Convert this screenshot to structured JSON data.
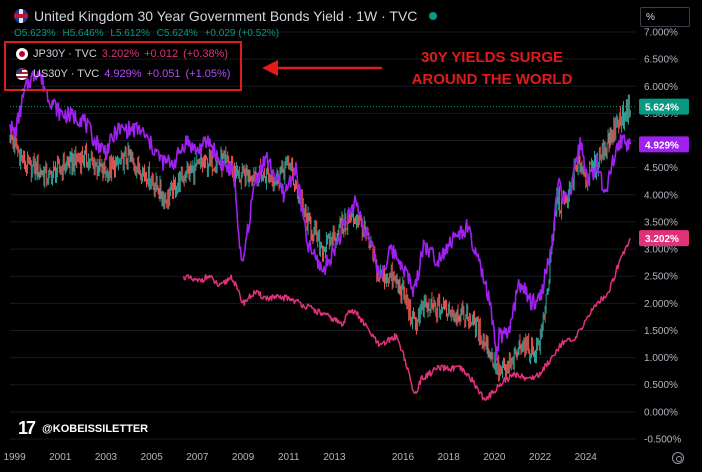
{
  "header": {
    "title": "United Kingdom 30 Year Government Bonds Yield · 1W · TVC",
    "ohlc": {
      "open": "O5.623%",
      "high": "H5.646%",
      "low": "L5.612%",
      "close": "C5.624%",
      "change": "+0.029 (+0.52%)"
    }
  },
  "unit_label": "%",
  "legend": [
    {
      "symbol": "JP30Y · TVC",
      "value": "3.202%",
      "change": "+0.012",
      "pct": "(+0.38%)",
      "color": "#e0317a"
    },
    {
      "symbol": "US30Y · TVC",
      "value": "4.929%",
      "change": "+0.051",
      "pct": "(+1.05%)",
      "color": "#a020f0"
    }
  ],
  "annotation": {
    "line1": "30Y YIELDS SURGE",
    "line2": "AROUND THE WORLD"
  },
  "watermark": "@KOBEISSILETTER",
  "colors": {
    "uk_up": "#26a69a",
    "uk_down": "#ef5350",
    "us": "#a020f0",
    "jp": "#e0317a",
    "highlight": "#e01b1b",
    "background": "#000000"
  },
  "icons": [
    "uk-flag-icon",
    "jp-flag-icon",
    "us-flag-icon",
    "tradingview-logo-icon",
    "settings-gear-icon",
    "collapse-arrow-icon"
  ],
  "chart_data": {
    "type": "line",
    "x_unit": "year",
    "y_unit": "%",
    "xlim": [
      1998.8,
      2026.2
    ],
    "ylim": [
      -0.5,
      7.0
    ],
    "x_ticks": [
      "1999",
      "2001",
      "2003",
      "2005",
      "2007",
      "2009",
      "2011",
      "2013",
      "2016",
      "2018",
      "2020",
      "2022",
      "2024"
    ],
    "y_ticks": [
      "-0.500%",
      "0.000%",
      "0.500%",
      "1.000%",
      "1.500%",
      "2.000%",
      "2.500%",
      "3.000%",
      "3.500%",
      "4.000%",
      "4.500%",
      "5.000%",
      "5.500%",
      "6.000%",
      "6.500%",
      "7.000%"
    ],
    "last_value_labels": [
      {
        "series": "UK30Y",
        "text": "5.624%",
        "value": 5.624,
        "color": "#089981"
      },
      {
        "series": "US30Y",
        "text": "4.929%",
        "value": 4.929,
        "color": "#a020f0"
      },
      {
        "series": "JP30Y",
        "text": "3.202%",
        "value": 3.202,
        "color": "#e0317a"
      }
    ],
    "current_price_line": 5.624,
    "series": [
      {
        "name": "UK30Y",
        "style": "candles",
        "x": [
          1998.8,
          1999.5,
          2000.0,
          2000.5,
          2001.0,
          2002.0,
          2003.0,
          2004.0,
          2005.0,
          2005.6,
          2006.5,
          2007.5,
          2008.3,
          2008.9,
          2009.5,
          2010.5,
          2011.0,
          2011.7,
          2012.5,
          2013.5,
          2014.0,
          2014.5,
          2015.0,
          2015.5,
          2016.0,
          2016.5,
          2016.8,
          2017.5,
          2018.0,
          2018.5,
          2019.0,
          2019.7,
          2020.0,
          2020.3,
          2020.8,
          2021.2,
          2021.7,
          2022.0,
          2022.4,
          2022.75,
          2022.9,
          2023.2,
          2023.5,
          2023.8,
          2024.0,
          2024.5,
          2025.0,
          2025.5,
          2025.95
        ],
        "values": [
          5.1,
          4.5,
          4.5,
          4.3,
          4.5,
          4.7,
          4.4,
          4.7,
          4.3,
          3.9,
          4.4,
          4.6,
          4.6,
          4.3,
          4.4,
          4.3,
          4.6,
          3.6,
          3.0,
          3.5,
          3.6,
          3.1,
          2.5,
          2.5,
          2.2,
          1.6,
          1.9,
          1.9,
          1.9,
          1.8,
          1.7,
          1.2,
          0.9,
          0.7,
          0.9,
          1.3,
          1.1,
          1.3,
          2.5,
          4.0,
          3.8,
          3.9,
          4.4,
          4.6,
          4.3,
          4.6,
          5.0,
          5.4,
          5.62
        ],
        "up_color": "#26a69a",
        "down_color": "#ef5350"
      },
      {
        "name": "US30Y",
        "x": [
          1998.8,
          1999.0,
          1999.5,
          2000.0,
          2000.5,
          2001.0,
          2002.0,
          2002.5,
          2003.0,
          2003.5,
          2004.5,
          2005.5,
          2006.0,
          2006.5,
          2007.0,
          2007.5,
          2008.0,
          2008.6,
          2008.95,
          2009.5,
          2010.0,
          2010.8,
          2011.3,
          2011.8,
          2012.5,
          2013.0,
          2013.9,
          2014.5,
          2015.0,
          2015.5,
          2016.0,
          2016.5,
          2016.9,
          2017.5,
          2018.0,
          2018.8,
          2019.5,
          2019.8,
          2020.1,
          2020.2,
          2020.6,
          2021.1,
          2021.6,
          2022.0,
          2022.5,
          2022.8,
          2023.2,
          2023.8,
          2024.1,
          2024.5,
          2024.8,
          2025.2,
          2025.5,
          2025.95
        ],
        "values": [
          5.3,
          5.1,
          6.0,
          6.3,
          5.8,
          5.5,
          5.4,
          5.0,
          4.8,
          5.2,
          5.2,
          4.6,
          4.6,
          5.0,
          4.8,
          5.0,
          4.6,
          4.4,
          2.6,
          4.2,
          4.7,
          4.0,
          4.5,
          3.1,
          2.6,
          3.0,
          3.9,
          3.2,
          2.5,
          3.0,
          2.7,
          2.2,
          3.1,
          2.8,
          3.1,
          3.4,
          2.5,
          2.0,
          1.0,
          1.4,
          1.4,
          2.4,
          2.0,
          2.1,
          3.0,
          4.2,
          3.8,
          5.0,
          4.2,
          4.6,
          4.0,
          4.6,
          5.0,
          4.93
        ],
        "color": "#a020f0"
      },
      {
        "name": "JP30Y",
        "x": [
          2006.4,
          2007.0,
          2007.5,
          2008.0,
          2008.5,
          2008.8,
          2009.0,
          2009.5,
          2010.0,
          2010.5,
          2011.0,
          2011.5,
          2012.0,
          2012.5,
          2013.0,
          2013.4,
          2013.6,
          2014.0,
          2014.5,
          2015.0,
          2015.3,
          2015.7,
          2016.0,
          2016.5,
          2016.8,
          2017.5,
          2018.0,
          2018.5,
          2019.0,
          2019.6,
          2020.0,
          2020.5,
          2021.0,
          2021.5,
          2022.0,
          2022.5,
          2023.0,
          2023.5,
          2024.0,
          2024.5,
          2025.0,
          2025.5,
          2025.95
        ],
        "values": [
          2.5,
          2.4,
          2.5,
          2.3,
          2.5,
          2.2,
          2.0,
          2.2,
          2.1,
          2.1,
          2.1,
          2.0,
          1.9,
          1.8,
          1.7,
          1.6,
          1.9,
          1.8,
          1.5,
          1.2,
          1.3,
          1.4,
          1.1,
          0.3,
          0.6,
          0.8,
          0.8,
          0.8,
          0.6,
          0.2,
          0.4,
          0.6,
          0.7,
          0.6,
          0.7,
          1.0,
          1.3,
          1.3,
          1.7,
          2.0,
          2.2,
          2.8,
          3.2
        ],
        "color": "#e0317a"
      }
    ]
  }
}
